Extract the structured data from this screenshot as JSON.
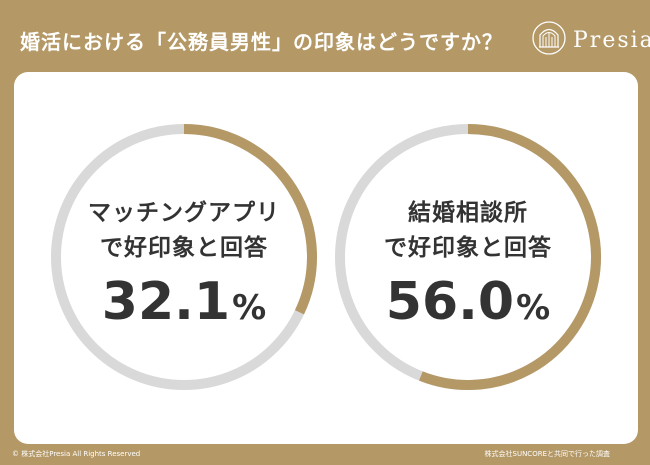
{
  "header": {
    "title": "婚活における「公務員男性」の印象はどうですか？",
    "logo_text": "Presia"
  },
  "chart_data": {
    "type": "pie",
    "rings": [
      {
        "label_line1": "マッチングアプリ",
        "label_line2": "で好印象と回答",
        "value": 32.1,
        "value_text": "32.1",
        "unit": "%"
      },
      {
        "label_line1": "結婚相談所",
        "label_line2": "で好印象と回答",
        "value": 56.0,
        "value_text": "56.0",
        "unit": "%"
      }
    ],
    "colors": {
      "fill": "#b49866",
      "track": "#d9d9d9"
    }
  },
  "footer": {
    "left": "© 株式会社Presia All Rights Reserved",
    "right": "株式会社SUNCOREと共同で行った調査"
  }
}
